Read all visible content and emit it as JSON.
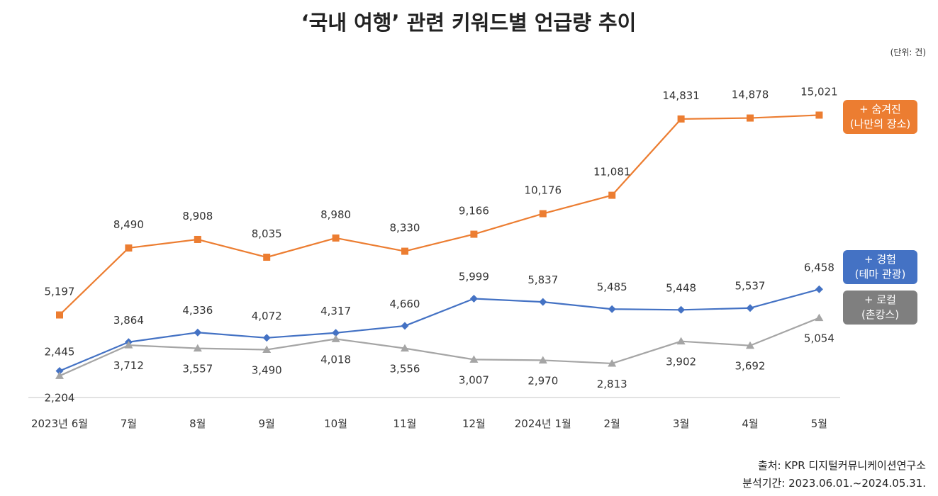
{
  "chart_data": {
    "type": "line",
    "title": "‘국내 여행’ 관련 키워드별 언급량 추이",
    "unit_label": "(단위: 건)",
    "categories": [
      "2023년 6월",
      "7월",
      "8월",
      "9월",
      "10월",
      "11월",
      "12월",
      "2024년 1월",
      "2월",
      "3월",
      "4월",
      "5월"
    ],
    "ylim": [
      1000,
      16500
    ],
    "grid": false,
    "series": [
      {
        "id": "orange",
        "name": "+ 숨겨진 (나만의 장소)",
        "legend_lines": [
          "+ 숨겨진",
          "(나만의 장소)"
        ],
        "color": "#ec7d31",
        "marker": "square",
        "values": [
          5197,
          8490,
          8908,
          8035,
          8980,
          8330,
          9166,
          10176,
          11081,
          14831,
          14878,
          15021
        ],
        "labels": [
          "5,197",
          "8,490",
          "8,908",
          "8,035",
          "8,980",
          "8,330",
          "9,166",
          "10,176",
          "11,081",
          "14,831",
          "14,878",
          "15,021"
        ]
      },
      {
        "id": "blue",
        "name": "+ 경험 (테마 관광)",
        "legend_lines": [
          "+ 경험",
          "(테마 관광)"
        ],
        "color": "#4472c4",
        "marker": "diamond",
        "values": [
          2445,
          3864,
          4336,
          4072,
          4317,
          4660,
          5999,
          5837,
          5485,
          5448,
          5537,
          6458
        ],
        "labels": [
          "2,445",
          "3,864",
          "4,336",
          "4,072",
          "4,317",
          "4,660",
          "5,999",
          "5,837",
          "5,485",
          "5,448",
          "5,537",
          "6,458"
        ]
      },
      {
        "id": "gray",
        "name": "+ 로컬 (촌캉스)",
        "legend_lines": [
          "+ 로컬",
          "(촌캉스)"
        ],
        "color": "#a5a5a5",
        "marker": "triangle",
        "values": [
          2204,
          3712,
          3557,
          3490,
          4018,
          3556,
          3007,
          2970,
          2813,
          3902,
          3692,
          5054
        ],
        "labels": [
          "2,204",
          "3,712",
          "3,557",
          "3,490",
          "4,018",
          "3,556",
          "3,007",
          "2,970",
          "2,813",
          "3,902",
          "3,692",
          "5,054"
        ]
      }
    ]
  },
  "source": {
    "line1": "출처: KPR 디지털커뮤니케이션연구소",
    "line2": "분석기간: 2023.06.01.~2024.05.31."
  }
}
